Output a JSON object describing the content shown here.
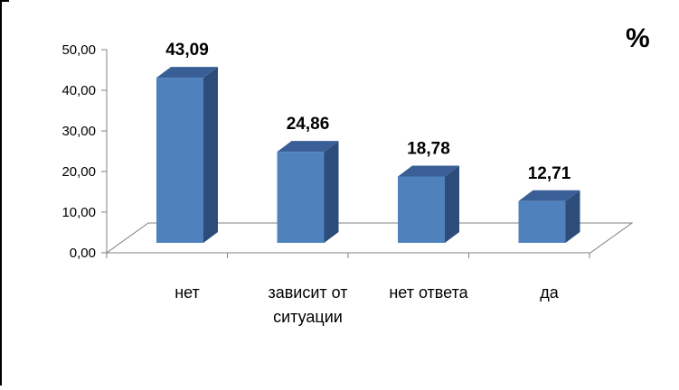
{
  "chart_data": {
    "type": "bar",
    "categories": [
      [
        "нет"
      ],
      [
        "зависит от",
        "ситуации"
      ],
      [
        "нет ответа"
      ],
      [
        "да"
      ]
    ],
    "values": [
      43.09,
      24.86,
      18.78,
      12.71
    ],
    "value_labels": [
      "43,09",
      "24,86",
      "18,78",
      "12,71"
    ],
    "ylim": [
      0,
      50
    ],
    "yticks": [
      "0,00",
      "10,00",
      "20,00",
      "30,00",
      "40,00",
      "50,00"
    ],
    "unit_label": "%",
    "three_d": true,
    "grid": false,
    "colors": {
      "bar_front": "#4F81BD",
      "bar_side": "#2D4C7A",
      "bar_top": "#3A5F96",
      "axis": "#808080",
      "frame": "#000000"
    }
  }
}
